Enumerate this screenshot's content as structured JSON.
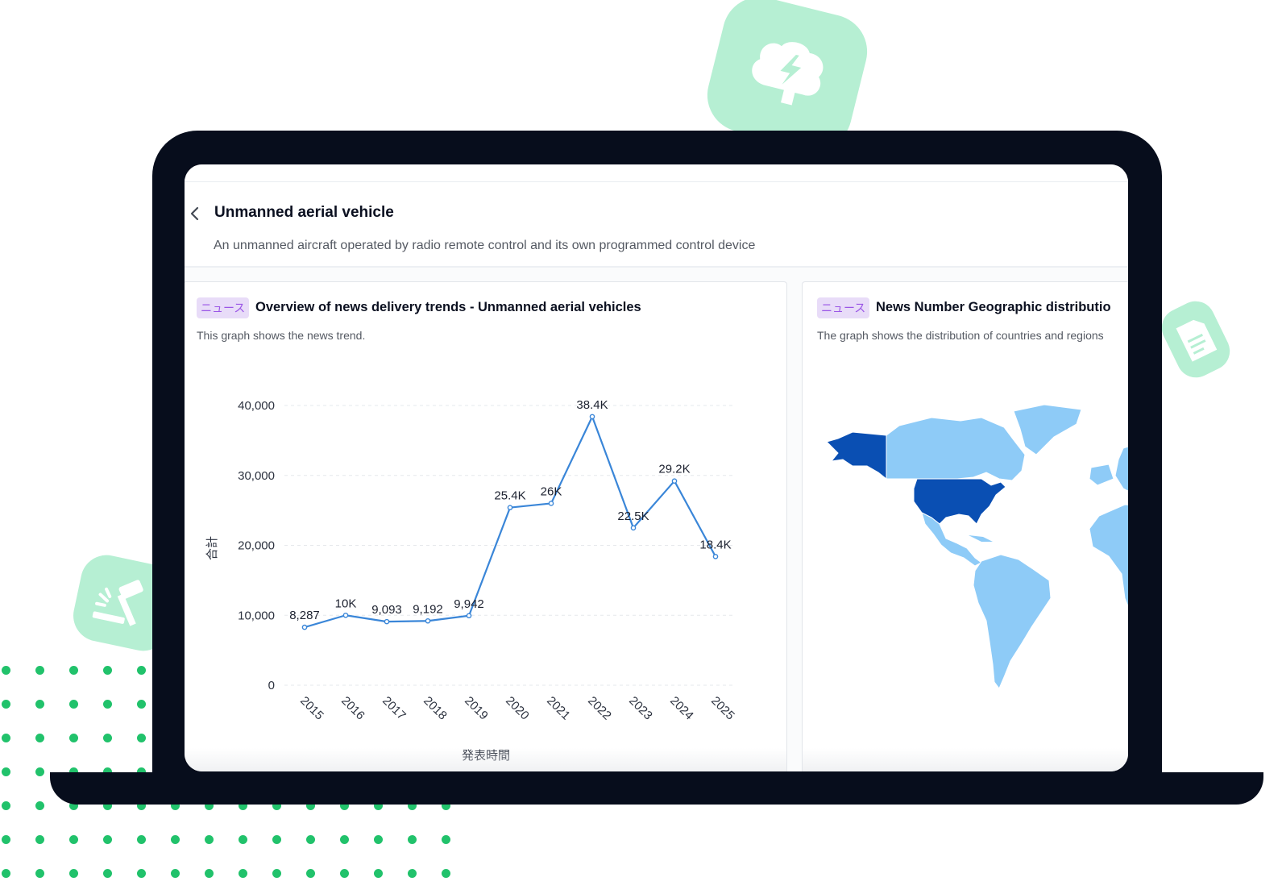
{
  "page": {
    "title": "Unmanned aerial vehicle",
    "description": "An unmanned aircraft operated by radio remote control and its own programmed control device"
  },
  "cards": [
    {
      "tag": "ニュース",
      "title": "Overview of news delivery trends - Unmanned aerial vehicles",
      "subtitle": "This graph shows the news trend."
    },
    {
      "tag": "ニュース",
      "title": "News Number Geographic distributio",
      "subtitle": "The graph shows the distribution of countries and regions"
    }
  ],
  "chart_data": {
    "type": "line",
    "categories": [
      "2015",
      "2016",
      "2017",
      "2018",
      "2019",
      "2020",
      "2021",
      "2022",
      "2023",
      "2024",
      "2025"
    ],
    "series": [
      {
        "values": [
          8287,
          10000,
          9093,
          9192,
          9942,
          25400,
          26000,
          38400,
          22500,
          29200,
          18400
        ],
        "labels": [
          "8,287",
          "10K",
          "9,093",
          "9,192",
          "9,942",
          "25.4K",
          "26K",
          "38.4K",
          "22.5K",
          "29.2K",
          "18.4K"
        ]
      }
    ],
    "title": "",
    "xlabel": "発表時間",
    "ylabel": "合計",
    "ylim": [
      0,
      40000
    ],
    "yticks": [
      "0",
      "10,000",
      "20,000",
      "30,000",
      "40,000"
    ],
    "grid": true,
    "line_color": "#3a86d8"
  },
  "map": {
    "highlight_regions": [
      "United States",
      "Alaska"
    ],
    "colors": {
      "high": "#0a4fb3",
      "low": "#8ecbf7",
      "background": "#ffffff"
    }
  },
  "colors": {
    "accent": "#21c26b",
    "laptop": "#070d1c",
    "tag_bg": "#e8dcf8",
    "tag_text": "#9a55e6"
  }
}
